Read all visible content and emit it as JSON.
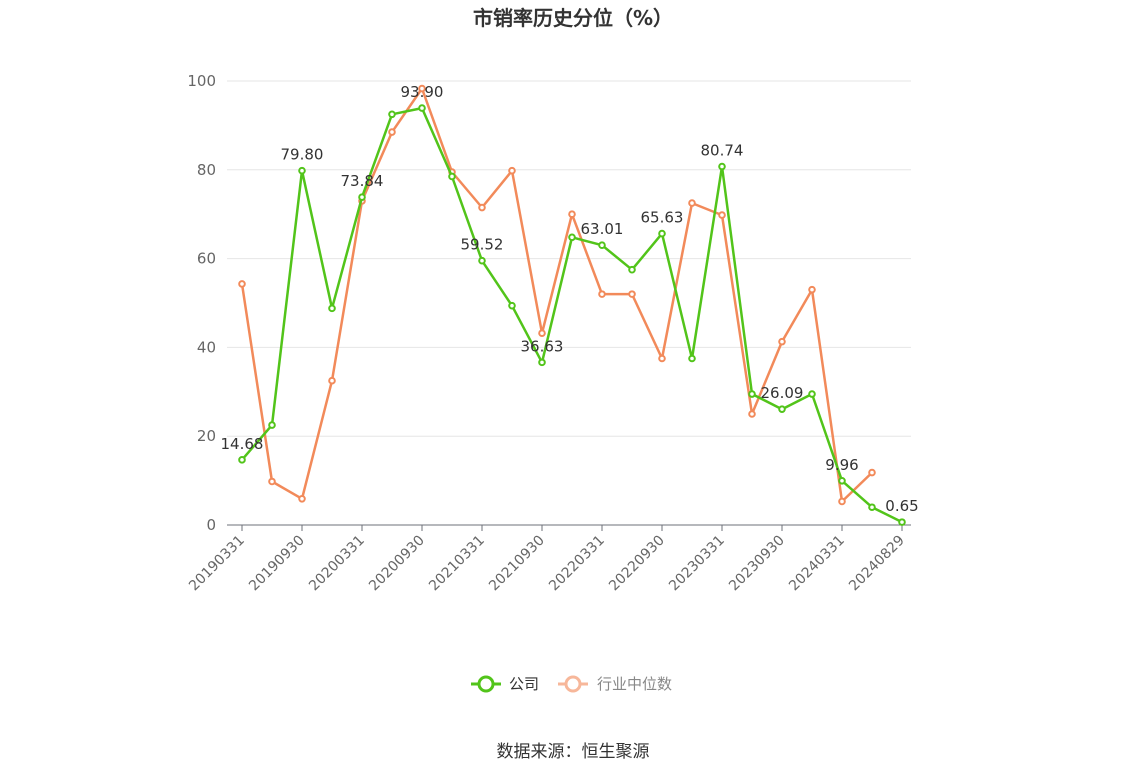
{
  "chart_data": {
    "type": "line",
    "title": "市销率历史分位（%）",
    "xlabel": "",
    "ylabel": "",
    "ylim": [
      0,
      100
    ],
    "yticks": [
      0,
      20,
      40,
      60,
      80,
      100
    ],
    "grid": true,
    "legend_position": "bottom-center",
    "x": [
      "20190331",
      "20190630",
      "20190930",
      "20191231",
      "20200331",
      "20200630",
      "20200930",
      "20201231",
      "20210331",
      "20210630",
      "20210930",
      "20211231",
      "20220331",
      "20220630",
      "20220930",
      "20221231",
      "20230331",
      "20230630",
      "20230930",
      "20231231",
      "20240331",
      "20240630",
      "20240829"
    ],
    "x_tick_labels": [
      "20190331",
      "20190930",
      "20200331",
      "20200930",
      "20210331",
      "20210930",
      "20220331",
      "20220930",
      "20230331",
      "20230930",
      "20240331",
      "20240829"
    ],
    "series": [
      {
        "name": "公司",
        "color": "#52c41a",
        "values": [
          14.68,
          22.5,
          79.8,
          48.8,
          73.84,
          92.5,
          93.9,
          78.5,
          59.52,
          49.4,
          36.63,
          64.8,
          63.01,
          57.5,
          65.63,
          37.5,
          80.74,
          29.5,
          26.09,
          29.5,
          9.96,
          4.0,
          0.65
        ],
        "labels": {
          "0": "14.68",
          "2": "79.80",
          "4": "73.84",
          "6": "93.90",
          "8": "59.52",
          "10": "36.63",
          "12": "63.01",
          "14": "65.63",
          "16": "80.74",
          "18": "26.09",
          "20": "9.96",
          "22": "0.65"
        }
      },
      {
        "name": "行业中位数",
        "color": "#f28a5a",
        "values": [
          54.3,
          9.8,
          5.9,
          32.5,
          73.0,
          88.5,
          98.3,
          79.5,
          71.5,
          79.8,
          43.2,
          70.0,
          52.0,
          52.0,
          37.5,
          72.5,
          69.8,
          25.0,
          41.3,
          53.0,
          5.3,
          11.8,
          null
        ]
      }
    ]
  },
  "legend": {
    "company_label": "公司",
    "industry_label": "行业中位数"
  },
  "source_text": "数据来源：恒生聚源"
}
